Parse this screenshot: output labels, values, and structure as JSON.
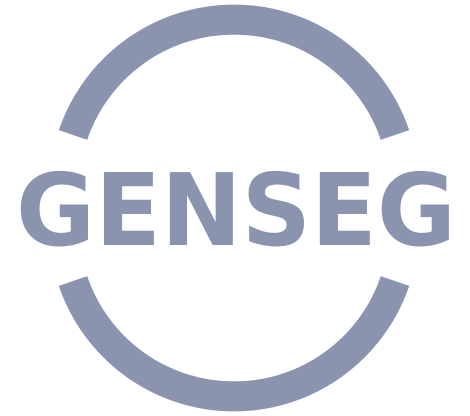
{
  "logo": {
    "text": "GENSEG",
    "color": "#8a94af",
    "background": "#ffffff"
  }
}
